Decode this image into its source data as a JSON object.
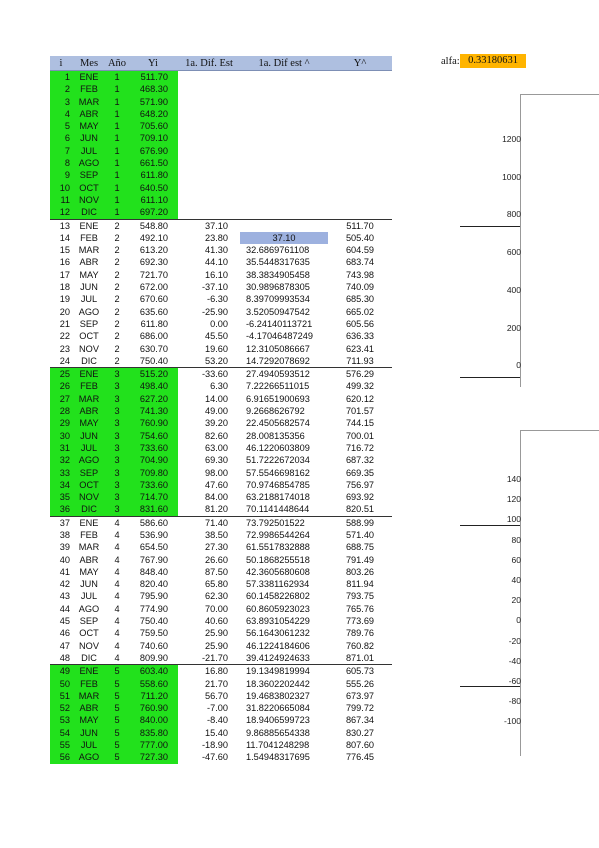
{
  "columns": [
    "i",
    "Mes",
    "Año",
    "Yi",
    "1a. Dif. Est",
    "1a. Dif est ^",
    "Y^"
  ],
  "alfa": {
    "label": "alfa:",
    "value": "0.33180631"
  },
  "highlight_cell_value": "37.10",
  "rows": [
    {
      "i": "1",
      "mes": "ENE",
      "ano": "1",
      "yi": "511.70",
      "d1": "",
      "d2": "",
      "yh": ""
    },
    {
      "i": "2",
      "mes": "FEB",
      "ano": "1",
      "yi": "468.30",
      "d1": "",
      "d2": "",
      "yh": ""
    },
    {
      "i": "3",
      "mes": "MAR",
      "ano": "1",
      "yi": "571.90",
      "d1": "",
      "d2": "",
      "yh": ""
    },
    {
      "i": "4",
      "mes": "ABR",
      "ano": "1",
      "yi": "648.20",
      "d1": "",
      "d2": "",
      "yh": ""
    },
    {
      "i": "5",
      "mes": "MAY",
      "ano": "1",
      "yi": "705.60",
      "d1": "",
      "d2": "",
      "yh": ""
    },
    {
      "i": "6",
      "mes": "JUN",
      "ano": "1",
      "yi": "709.10",
      "d1": "",
      "d2": "",
      "yh": ""
    },
    {
      "i": "7",
      "mes": "JUL",
      "ano": "1",
      "yi": "676.90",
      "d1": "",
      "d2": "",
      "yh": ""
    },
    {
      "i": "8",
      "mes": "AGO",
      "ano": "1",
      "yi": "661.50",
      "d1": "",
      "d2": "",
      "yh": ""
    },
    {
      "i": "9",
      "mes": "SEP",
      "ano": "1",
      "yi": "611.80",
      "d1": "",
      "d2": "",
      "yh": ""
    },
    {
      "i": "10",
      "mes": "OCT",
      "ano": "1",
      "yi": "640.50",
      "d1": "",
      "d2": "",
      "yh": ""
    },
    {
      "i": "11",
      "mes": "NOV",
      "ano": "1",
      "yi": "611.10",
      "d1": "",
      "d2": "",
      "yh": ""
    },
    {
      "i": "12",
      "mes": "DIC",
      "ano": "1",
      "yi": "697.20",
      "d1": "",
      "d2": "",
      "yh": ""
    },
    {
      "i": "13",
      "mes": "ENE",
      "ano": "2",
      "yi": "548.80",
      "d1": "37.10",
      "d2": "",
      "yh": "511.70"
    },
    {
      "i": "14",
      "mes": "FEB",
      "ano": "2",
      "yi": "492.10",
      "d1": "23.80",
      "d2": "37.10",
      "yh": "505.40"
    },
    {
      "i": "15",
      "mes": "MAR",
      "ano": "2",
      "yi": "613.20",
      "d1": "41.30",
      "d2": "32.6869761108",
      "yh": "604.59"
    },
    {
      "i": "16",
      "mes": "ABR",
      "ano": "2",
      "yi": "692.30",
      "d1": "44.10",
      "d2": "35.5448317635",
      "yh": "683.74"
    },
    {
      "i": "17",
      "mes": "MAY",
      "ano": "2",
      "yi": "721.70",
      "d1": "16.10",
      "d2": "38.3834905458",
      "yh": "743.98"
    },
    {
      "i": "18",
      "mes": "JUN",
      "ano": "2",
      "yi": "672.00",
      "d1": "-37.10",
      "d2": "30.9896878305",
      "yh": "740.09"
    },
    {
      "i": "19",
      "mes": "JUL",
      "ano": "2",
      "yi": "670.60",
      "d1": "-6.30",
      "d2": "8.39709993534",
      "yh": "685.30"
    },
    {
      "i": "20",
      "mes": "AGO",
      "ano": "2",
      "yi": "635.60",
      "d1": "-25.90",
      "d2": "3.52050947542",
      "yh": "665.02"
    },
    {
      "i": "21",
      "mes": "SEP",
      "ano": "2",
      "yi": "611.80",
      "d1": "0.00",
      "d2": "-6.24140113721",
      "yh": "605.56"
    },
    {
      "i": "22",
      "mes": "OCT",
      "ano": "2",
      "yi": "686.00",
      "d1": "45.50",
      "d2": "-4.17046487249",
      "yh": "636.33"
    },
    {
      "i": "23",
      "mes": "NOV",
      "ano": "2",
      "yi": "630.70",
      "d1": "19.60",
      "d2": "12.3105086667",
      "yh": "623.41"
    },
    {
      "i": "24",
      "mes": "DIC",
      "ano": "2",
      "yi": "750.40",
      "d1": "53.20",
      "d2": "14.7292078692",
      "yh": "711.93"
    },
    {
      "i": "25",
      "mes": "ENE",
      "ano": "3",
      "yi": "515.20",
      "d1": "-33.60",
      "d2": "27.4940593512",
      "yh": "576.29"
    },
    {
      "i": "26",
      "mes": "FEB",
      "ano": "3",
      "yi": "498.40",
      "d1": "6.30",
      "d2": "7.22266511015",
      "yh": "499.32"
    },
    {
      "i": "27",
      "mes": "MAR",
      "ano": "3",
      "yi": "627.20",
      "d1": "14.00",
      "d2": "6.91651900693",
      "yh": "620.12"
    },
    {
      "i": "28",
      "mes": "ABR",
      "ano": "3",
      "yi": "741.30",
      "d1": "49.00",
      "d2": "9.2668626792",
      "yh": "701.57"
    },
    {
      "i": "29",
      "mes": "MAY",
      "ano": "3",
      "yi": "760.90",
      "d1": "39.20",
      "d2": "22.4505682574",
      "yh": "744.15"
    },
    {
      "i": "30",
      "mes": "JUN",
      "ano": "3",
      "yi": "754.60",
      "d1": "82.60",
      "d2": "28.008135356",
      "yh": "700.01"
    },
    {
      "i": "31",
      "mes": "JUL",
      "ano": "3",
      "yi": "733.60",
      "d1": "63.00",
      "d2": "46.1220603809",
      "yh": "716.72"
    },
    {
      "i": "32",
      "mes": "AGO",
      "ano": "3",
      "yi": "704.90",
      "d1": "69.30",
      "d2": "51.7222672034",
      "yh": "687.32"
    },
    {
      "i": "33",
      "mes": "SEP",
      "ano": "3",
      "yi": "709.80",
      "d1": "98.00",
      "d2": "57.5546698162",
      "yh": "669.35"
    },
    {
      "i": "34",
      "mes": "OCT",
      "ano": "3",
      "yi": "733.60",
      "d1": "47.60",
      "d2": "70.9746854785",
      "yh": "756.97"
    },
    {
      "i": "35",
      "mes": "NOV",
      "ano": "3",
      "yi": "714.70",
      "d1": "84.00",
      "d2": "63.2188174018",
      "yh": "693.92"
    },
    {
      "i": "36",
      "mes": "DIC",
      "ano": "3",
      "yi": "831.60",
      "d1": "81.20",
      "d2": "70.1141448644",
      "yh": "820.51"
    },
    {
      "i": "37",
      "mes": "ENE",
      "ano": "4",
      "yi": "586.60",
      "d1": "71.40",
      "d2": "73.792501522",
      "yh": "588.99"
    },
    {
      "i": "38",
      "mes": "FEB",
      "ano": "4",
      "yi": "536.90",
      "d1": "38.50",
      "d2": "72.9986544264",
      "yh": "571.40"
    },
    {
      "i": "39",
      "mes": "MAR",
      "ano": "4",
      "yi": "654.50",
      "d1": "27.30",
      "d2": "61.5517832888",
      "yh": "688.75"
    },
    {
      "i": "40",
      "mes": "ABR",
      "ano": "4",
      "yi": "767.90",
      "d1": "26.60",
      "d2": "50.1868255518",
      "yh": "791.49"
    },
    {
      "i": "41",
      "mes": "MAY",
      "ano": "4",
      "yi": "848.40",
      "d1": "87.50",
      "d2": "42.3605680608",
      "yh": "803.26"
    },
    {
      "i": "42",
      "mes": "JUN",
      "ano": "4",
      "yi": "820.40",
      "d1": "65.80",
      "d2": "57.3381162934",
      "yh": "811.94"
    },
    {
      "i": "43",
      "mes": "JUL",
      "ano": "4",
      "yi": "795.90",
      "d1": "62.30",
      "d2": "60.1458226802",
      "yh": "793.75"
    },
    {
      "i": "44",
      "mes": "AGO",
      "ano": "4",
      "yi": "774.90",
      "d1": "70.00",
      "d2": "60.8605923023",
      "yh": "765.76"
    },
    {
      "i": "45",
      "mes": "SEP",
      "ano": "4",
      "yi": "750.40",
      "d1": "40.60",
      "d2": "63.8931054229",
      "yh": "773.69"
    },
    {
      "i": "46",
      "mes": "OCT",
      "ano": "4",
      "yi": "759.50",
      "d1": "25.90",
      "d2": "56.1643061232",
      "yh": "789.76"
    },
    {
      "i": "47",
      "mes": "NOV",
      "ano": "4",
      "yi": "740.60",
      "d1": "25.90",
      "d2": "46.1224184606",
      "yh": "760.82"
    },
    {
      "i": "48",
      "mes": "DIC",
      "ano": "4",
      "yi": "809.90",
      "d1": "-21.70",
      "d2": "39.4124924633",
      "yh": "871.01"
    },
    {
      "i": "49",
      "mes": "ENE",
      "ano": "5",
      "yi": "603.40",
      "d1": "16.80",
      "d2": "19.1349819994",
      "yh": "605.73"
    },
    {
      "i": "50",
      "mes": "FEB",
      "ano": "5",
      "yi": "558.60",
      "d1": "21.70",
      "d2": "18.3602202442",
      "yh": "555.26"
    },
    {
      "i": "51",
      "mes": "MAR",
      "ano": "5",
      "yi": "711.20",
      "d1": "56.70",
      "d2": "19.4683802327",
      "yh": "673.97"
    },
    {
      "i": "52",
      "mes": "ABR",
      "ano": "5",
      "yi": "760.90",
      "d1": "-7.00",
      "d2": "31.8220665084",
      "yh": "799.72"
    },
    {
      "i": "53",
      "mes": "MAY",
      "ano": "5",
      "yi": "840.00",
      "d1": "-8.40",
      "d2": "18.9406599723",
      "yh": "867.34"
    },
    {
      "i": "54",
      "mes": "JUN",
      "ano": "5",
      "yi": "835.80",
      "d1": "15.40",
      "d2": "9.86885654338",
      "yh": "830.27"
    },
    {
      "i": "55",
      "mes": "JUL",
      "ano": "5",
      "yi": "777.00",
      "d1": "-18.90",
      "d2": "11.7041248298",
      "yh": "807.60"
    },
    {
      "i": "56",
      "mes": "AGO",
      "ano": "5",
      "yi": "727.30",
      "d1": "-47.60",
      "d2": "1.54948317695",
      "yh": "776.45"
    }
  ],
  "green_years": [
    "1",
    "3",
    "5"
  ],
  "chart1_ticks": [
    "1200",
    "1000",
    "800",
    "600",
    "400",
    "200",
    "0"
  ],
  "chart2_ticks": [
    "140",
    "120",
    "100",
    "80",
    "60",
    "40",
    "20",
    "0",
    "-20",
    "-40",
    "-60",
    "-80",
    "-100"
  ],
  "colors": {
    "header": "#aebfe0",
    "green": "#22e11c",
    "alfa": "#ffb400",
    "highlight": "#9db1df"
  }
}
